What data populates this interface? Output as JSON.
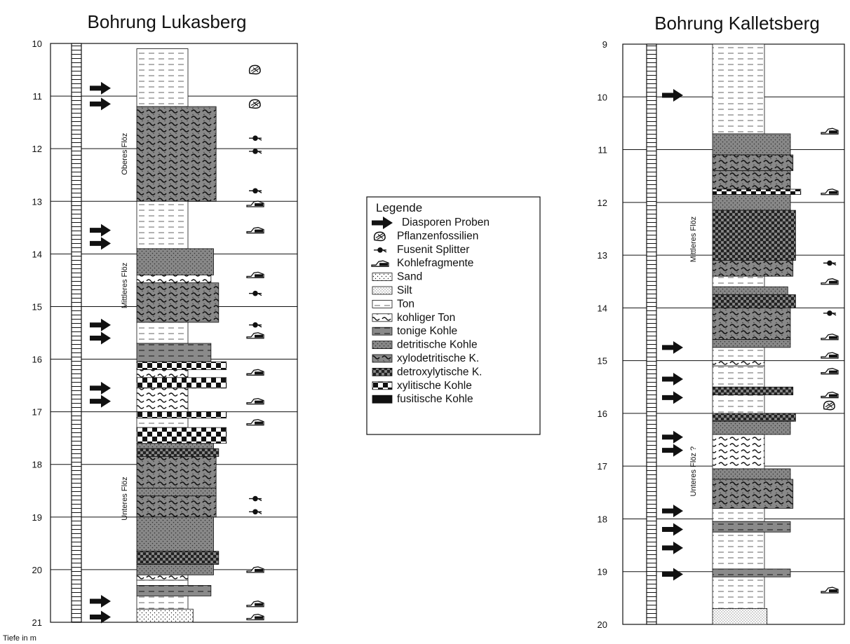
{
  "left_log": {
    "title": "Bohrung Lukasberg",
    "depth_ticks": [
      "10",
      "11",
      "12",
      "13",
      "14",
      "15",
      "16",
      "17",
      "18",
      "19",
      "20",
      "21"
    ],
    "depth_range": [
      10,
      21
    ],
    "seams": [
      {
        "label": "Oberes Flöz",
        "from": 11.2,
        "to": 13.0
      },
      {
        "label": "Mittleres Flöz",
        "from": 13.9,
        "to": 15.3
      },
      {
        "label": "Unteres Flöz",
        "from": 17.3,
        "to": 20.0
      }
    ],
    "arrows": [
      10.85,
      11.15,
      13.55,
      13.8,
      15.35,
      15.6,
      16.55,
      16.8,
      20.6,
      20.9
    ],
    "symbols": [
      {
        "d": 10.5,
        "t": "plant"
      },
      {
        "d": 11.15,
        "t": "plant"
      },
      {
        "d": 11.8,
        "t": "fusenit"
      },
      {
        "d": 12.05,
        "t": "fusenit"
      },
      {
        "d": 12.8,
        "t": "fusenit"
      },
      {
        "d": 13.05,
        "t": "coal"
      },
      {
        "d": 13.55,
        "t": "coal"
      },
      {
        "d": 14.4,
        "t": "coal"
      },
      {
        "d": 14.75,
        "t": "fusenit"
      },
      {
        "d": 15.35,
        "t": "fusenit"
      },
      {
        "d": 15.55,
        "t": "coal"
      },
      {
        "d": 16.25,
        "t": "coal"
      },
      {
        "d": 16.8,
        "t": "coal"
      },
      {
        "d": 17.2,
        "t": "coal"
      },
      {
        "d": 18.65,
        "t": "fusenit"
      },
      {
        "d": 18.9,
        "t": "fusenit"
      },
      {
        "d": 20.0,
        "t": "coal"
      },
      {
        "d": 20.65,
        "t": "coal"
      },
      {
        "d": 20.9,
        "t": "coal"
      }
    ],
    "layers": [
      {
        "from": 10.1,
        "to": 11.2,
        "type": "ton",
        "w": 1.0
      },
      {
        "from": 11.2,
        "to": 13.0,
        "type": "xylo",
        "w": 1.55
      },
      {
        "from": 13.0,
        "to": 13.9,
        "type": "ton",
        "w": 1.0
      },
      {
        "from": 13.9,
        "to": 14.4,
        "type": "detrit",
        "w": 1.5
      },
      {
        "from": 14.4,
        "to": 14.55,
        "type": "kohligerTon",
        "w": 1.45
      },
      {
        "from": 14.55,
        "to": 15.3,
        "type": "xylo",
        "w": 1.6
      },
      {
        "from": 15.3,
        "to": 15.7,
        "type": "ton",
        "w": 1.0
      },
      {
        "from": 15.7,
        "to": 16.05,
        "type": "tonigeKohle",
        "w": 1.45
      },
      {
        "from": 16.05,
        "to": 16.2,
        "type": "xylit",
        "w": 1.75
      },
      {
        "from": 16.2,
        "to": 16.35,
        "type": "kohligerTon",
        "w": 1.0
      },
      {
        "from": 16.35,
        "to": 16.55,
        "type": "xylit",
        "w": 1.75
      },
      {
        "from": 16.55,
        "to": 17.0,
        "type": "kohligerTon",
        "w": 1.0
      },
      {
        "from": 17.0,
        "to": 17.12,
        "type": "xylit",
        "w": 1.75
      },
      {
        "from": 17.12,
        "to": 17.3,
        "type": "ton",
        "w": 1.0
      },
      {
        "from": 17.3,
        "to": 17.6,
        "type": "xylit",
        "w": 1.75
      },
      {
        "from": 17.6,
        "to": 17.7,
        "type": "detrit",
        "w": 1.5
      },
      {
        "from": 17.7,
        "to": 17.85,
        "type": "detrox",
        "w": 1.6
      },
      {
        "from": 17.85,
        "to": 18.45,
        "type": "xylo",
        "w": 1.55
      },
      {
        "from": 18.45,
        "to": 18.6,
        "type": "detrit",
        "w": 1.55
      },
      {
        "from": 18.6,
        "to": 19.0,
        "type": "xylo",
        "w": 1.55
      },
      {
        "from": 19.0,
        "to": 19.65,
        "type": "detrit",
        "w": 1.5
      },
      {
        "from": 19.65,
        "to": 19.9,
        "type": "detrox",
        "w": 1.6
      },
      {
        "from": 19.9,
        "to": 20.1,
        "type": "detrit",
        "w": 1.5
      },
      {
        "from": 20.1,
        "to": 20.2,
        "type": "kohligerTon",
        "w": 1.0
      },
      {
        "from": 20.2,
        "to": 20.3,
        "type": "ton",
        "w": 1.0
      },
      {
        "from": 20.3,
        "to": 20.5,
        "type": "tonigeKohle",
        "w": 1.45
      },
      {
        "from": 20.5,
        "to": 20.75,
        "type": "ton",
        "w": 1.0
      },
      {
        "from": 20.75,
        "to": 21.0,
        "type": "sand",
        "w": 1.1
      }
    ]
  },
  "right_log": {
    "title": "Bohrung Kalletsberg",
    "depth_ticks": [
      "9",
      "10",
      "11",
      "12",
      "13",
      "14",
      "15",
      "16",
      "17",
      "18",
      "19",
      "20"
    ],
    "depth_range": [
      9,
      20
    ],
    "seams": [
      {
        "label": "Mittleres Flöz",
        "from": 10.7,
        "to": 14.7
      },
      {
        "label": "Unteres Flöz ?",
        "from": 16.0,
        "to": 18.2
      }
    ],
    "arrows": [
      9.97,
      14.75,
      15.35,
      15.7,
      16.45,
      16.7,
      17.85,
      18.2,
      18.55,
      19.05
    ],
    "symbols": [
      {
        "d": 10.65,
        "t": "coal"
      },
      {
        "d": 11.8,
        "t": "coal"
      },
      {
        "d": 13.15,
        "t": "fusenit"
      },
      {
        "d": 13.5,
        "t": "coal"
      },
      {
        "d": 14.1,
        "t": "fusenit"
      },
      {
        "d": 14.55,
        "t": "coal"
      },
      {
        "d": 14.9,
        "t": "coal"
      },
      {
        "d": 15.2,
        "t": "coal"
      },
      {
        "d": 15.65,
        "t": "coal"
      },
      {
        "d": 15.85,
        "t": "plant"
      },
      {
        "d": 19.35,
        "t": "coal"
      }
    ],
    "layers": [
      {
        "from": 9.0,
        "to": 10.7,
        "type": "ton",
        "w": 1.0
      },
      {
        "from": 10.7,
        "to": 11.1,
        "type": "detrit",
        "w": 1.5
      },
      {
        "from": 11.1,
        "to": 11.4,
        "type": "xylo",
        "w": 1.55
      },
      {
        "from": 11.4,
        "to": 11.75,
        "type": "xylo",
        "w": 1.5
      },
      {
        "from": 11.75,
        "to": 11.85,
        "type": "xylit",
        "w": 1.7
      },
      {
        "from": 11.85,
        "to": 12.15,
        "type": "detrit",
        "w": 1.5
      },
      {
        "from": 12.15,
        "to": 13.1,
        "type": "detrox",
        "w": 1.6
      },
      {
        "from": 13.1,
        "to": 13.4,
        "type": "xylo",
        "w": 1.55
      },
      {
        "from": 13.4,
        "to": 13.6,
        "type": "ton",
        "w": 1.0
      },
      {
        "from": 13.6,
        "to": 13.75,
        "type": "detrit",
        "w": 1.45
      },
      {
        "from": 13.75,
        "to": 14.0,
        "type": "detrox",
        "w": 1.6
      },
      {
        "from": 14.0,
        "to": 14.6,
        "type": "xylo",
        "w": 1.5
      },
      {
        "from": 14.6,
        "to": 14.75,
        "type": "detrit",
        "w": 1.5
      },
      {
        "from": 14.75,
        "to": 15.0,
        "type": "ton",
        "w": 1.0
      },
      {
        "from": 15.0,
        "to": 15.1,
        "type": "kohligerTon",
        "w": 1.0
      },
      {
        "from": 15.1,
        "to": 15.5,
        "type": "ton",
        "w": 1.0
      },
      {
        "from": 15.5,
        "to": 15.65,
        "type": "detrox",
        "w": 1.55
      },
      {
        "from": 15.65,
        "to": 16.0,
        "type": "ton",
        "w": 1.0
      },
      {
        "from": 16.0,
        "to": 16.15,
        "type": "detrox",
        "w": 1.6
      },
      {
        "from": 16.15,
        "to": 16.4,
        "type": "detrit",
        "w": 1.5
      },
      {
        "from": 16.4,
        "to": 17.05,
        "type": "kohligerTon",
        "w": 1.0
      },
      {
        "from": 17.05,
        "to": 17.25,
        "type": "detrit",
        "w": 1.5
      },
      {
        "from": 17.25,
        "to": 17.8,
        "type": "xylo",
        "w": 1.55
      },
      {
        "from": 17.8,
        "to": 18.05,
        "type": "ton",
        "w": 1.0
      },
      {
        "from": 18.05,
        "to": 18.25,
        "type": "tonigeKohle",
        "w": 1.5
      },
      {
        "from": 18.25,
        "to": 18.95,
        "type": "ton",
        "w": 1.0
      },
      {
        "from": 18.95,
        "to": 19.1,
        "type": "tonigeKohle",
        "w": 1.5
      },
      {
        "from": 19.1,
        "to": 19.7,
        "type": "ton",
        "w": 1.0
      },
      {
        "from": 19.7,
        "to": 20.0,
        "type": "silt",
        "w": 1.05
      }
    ]
  },
  "legend": {
    "title": "Legende",
    "items": [
      {
        "key": "arrow",
        "label": "Diasporen Proben"
      },
      {
        "key": "plant",
        "label": "Pflanzenfossilien"
      },
      {
        "key": "fusenit",
        "label": "Fusenit Splitter"
      },
      {
        "key": "coal",
        "label": "Kohlefragmente"
      },
      {
        "key": "sand",
        "label": "Sand"
      },
      {
        "key": "silt",
        "label": "Silt"
      },
      {
        "key": "ton",
        "label": "Ton"
      },
      {
        "key": "kohligerTon",
        "label": "kohliger Ton"
      },
      {
        "key": "tonigeKohle",
        "label": "tonige Kohle"
      },
      {
        "key": "detrit",
        "label": "detritische Kohle"
      },
      {
        "key": "xylo",
        "label": "xylodetritische K."
      },
      {
        "key": "detrox",
        "label": "detroxylytische K."
      },
      {
        "key": "xylit",
        "label": "xylitische Kohle"
      },
      {
        "key": "fusit",
        "label": "fusitische Kohle"
      }
    ]
  },
  "depth_unit_label": "Tiefe in m"
}
